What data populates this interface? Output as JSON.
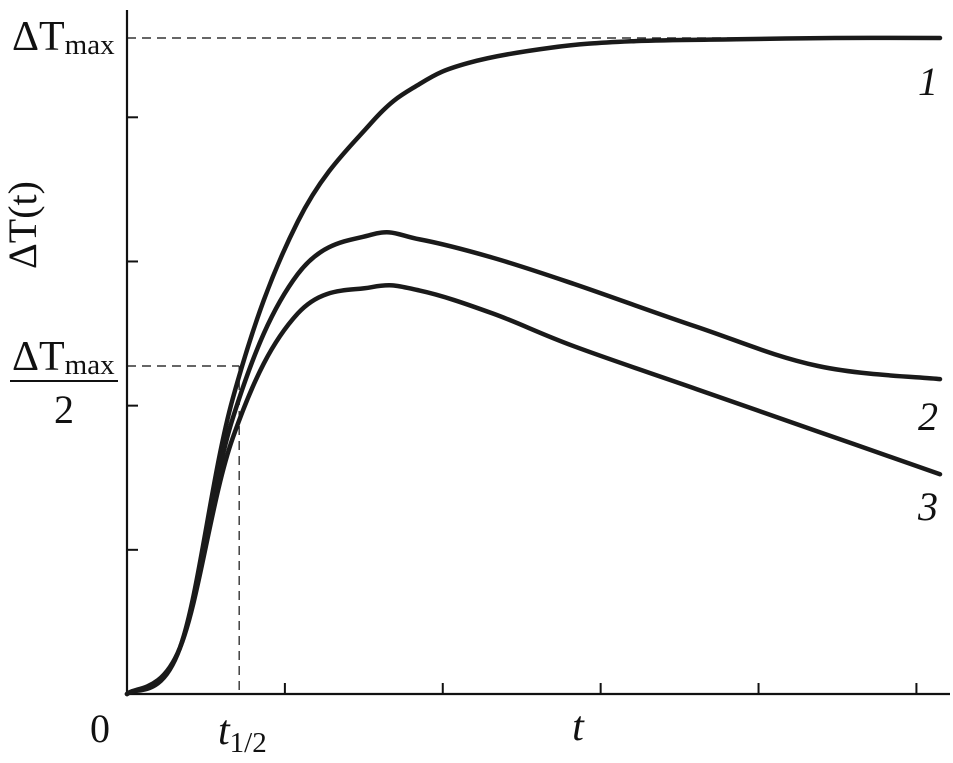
{
  "chart_data": {
    "type": "line",
    "title": "",
    "ylabel": "ΔT(t)",
    "xlabel": "t",
    "origin_label": "0",
    "x_ticks_count": 5,
    "y_ticks_count": 4,
    "xlim": [
      0,
      1
    ],
    "ylim": [
      0,
      1
    ],
    "y_max_label": {
      "main": "ΔT",
      "sub": "max"
    },
    "y_half_label": {
      "num_main": "ΔT",
      "num_sub": "max",
      "den": "2"
    },
    "x_half_label": {
      "main": "t",
      "sub": "1/2"
    },
    "y_max_value": 1.0,
    "y_half_value": 0.5,
    "t_half_value": 0.138,
    "series": [
      {
        "name": "1",
        "x": [
          0,
          0.065,
          0.13,
          0.21,
          0.3,
          0.36,
          0.42,
          0.52,
          0.62,
          0.75,
          0.87,
          1.0
        ],
        "y": [
          0,
          0.07,
          0.45,
          0.72,
          0.87,
          0.93,
          0.962,
          0.985,
          0.995,
          0.998,
          1.0,
          1.0
        ]
      },
      {
        "name": "2",
        "x": [
          0,
          0.065,
          0.13,
          0.21,
          0.3,
          0.36,
          0.45,
          0.55,
          0.7,
          0.85,
          1.0
        ],
        "y": [
          0,
          0.07,
          0.42,
          0.64,
          0.7,
          0.693,
          0.665,
          0.625,
          0.56,
          0.5,
          0.48
        ]
      },
      {
        "name": "3",
        "x": [
          0,
          0.065,
          0.13,
          0.21,
          0.3,
          0.36,
          0.45,
          0.55,
          0.7,
          0.85,
          1.0
        ],
        "y": [
          0,
          0.07,
          0.39,
          0.58,
          0.62,
          0.615,
          0.58,
          0.53,
          0.465,
          0.4,
          0.335
        ]
      }
    ]
  }
}
